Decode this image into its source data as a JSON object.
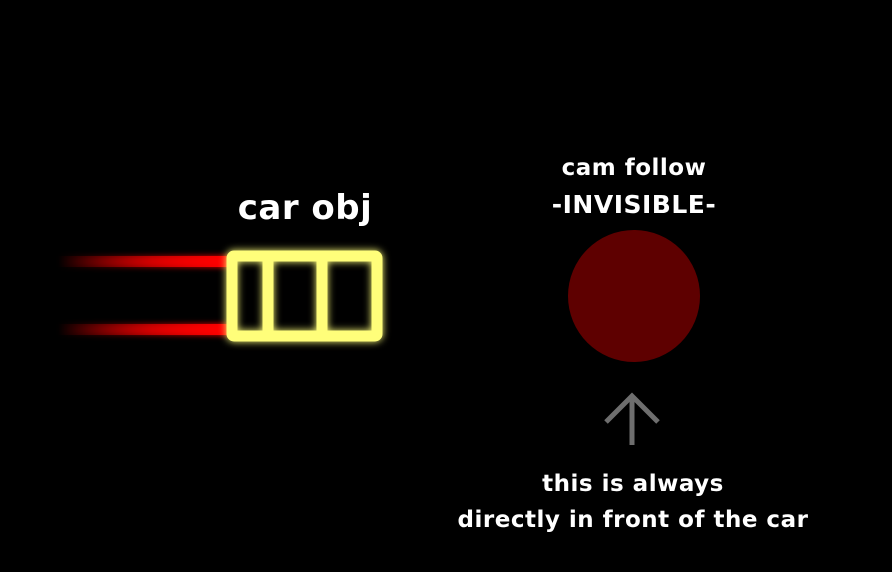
{
  "car": {
    "label": "car obj"
  },
  "cam_follow": {
    "title": "cam follow",
    "subtitle": "-INVISIBLE-"
  },
  "note": {
    "line1": "this is always",
    "line2": "directly in front of the car"
  },
  "colors": {
    "background": "#000000",
    "car_outline": "#fffe7a",
    "trail": "#ff0000",
    "cam_circle": "#5e0000",
    "arrow": "#6e6e6e",
    "text": "#ffffff"
  },
  "icons": {
    "arrow": "arrow-up-icon"
  }
}
